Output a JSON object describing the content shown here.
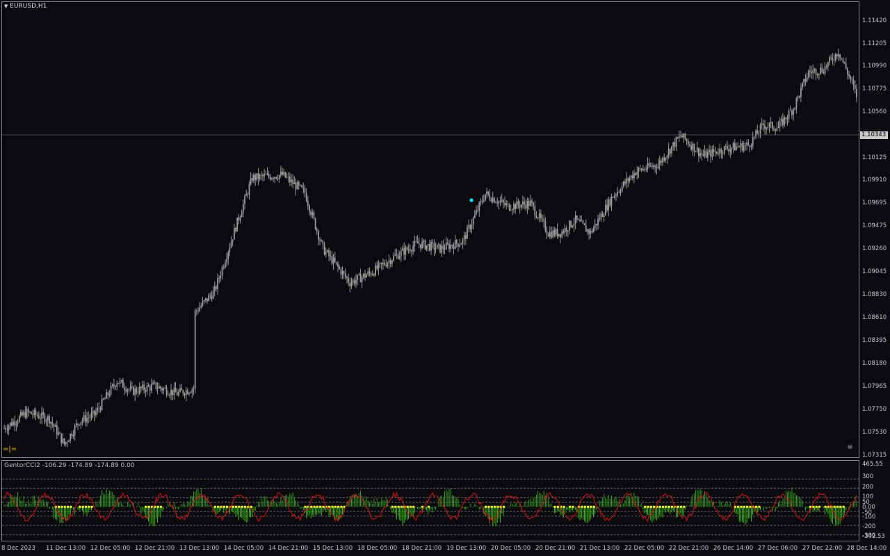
{
  "window": {
    "symbol_title": "EURUSD,H1"
  },
  "current_price": "1.10343",
  "price_axis": [
    "1.11420",
    "1.11205",
    "1.10990",
    "1.10775",
    "1.10560",
    "1.10125",
    "1.09910",
    "1.09695",
    "1.09475",
    "1.09260",
    "1.09045",
    "1.08830",
    "1.08610",
    "1.08395",
    "1.08180",
    "1.07965",
    "1.07750",
    "1.07530",
    "1.07315"
  ],
  "indicator": {
    "title": "GentorCCI2 -106.29 -174.89 -174.89 0.00",
    "axis": [
      "465.55",
      "300",
      "200",
      "100",
      "50",
      "0.00",
      "-50",
      "-100",
      "-200",
      "-300",
      "-342.53"
    ],
    "colors": {
      "positive": "#2e9e16",
      "negative": "#35c400",
      "line": "#e01010",
      "signal": "#ffff00"
    }
  },
  "time_axis": [
    "8 Dec 2023",
    "11 Dec 13:00",
    "12 Dec 05:00",
    "12 Dec 21:00",
    "13 Dec 13:00",
    "14 Dec 05:00",
    "14 Dec 21:00",
    "15 Dec 13:00",
    "18 Dec 05:00",
    "18 Dec 21:00",
    "19 Dec 13:00",
    "20 Dec 05:00",
    "20 Dec 21:00",
    "21 Dec 13:00",
    "22 Dec 05:00",
    "22 Dec 21:00",
    "26 Dec 14:00",
    "27 Dec 06:00",
    "27 Dec 22:00",
    "28 Dec 14:00"
  ],
  "colors": {
    "candle": "#9a9a9a",
    "background": "#0b0b0f",
    "grid": "#8a8a8a",
    "cursor": "#00e5ff",
    "expert_icon": "#ffd400"
  },
  "icons": {
    "expert_icon": "=|=",
    "dropdown": "triangle-down-icon",
    "settings": "cross-icon"
  },
  "chart_data": {
    "type": "candlestick",
    "title": "EURUSD,H1",
    "ylim": [
      1.07315,
      1.1142
    ],
    "anchors_close": [
      [
        0,
        1.0755
      ],
      [
        15,
        1.077
      ],
      [
        30,
        1.0764
      ],
      [
        40,
        1.074
      ],
      [
        50,
        1.0762
      ],
      [
        60,
        1.0768
      ],
      [
        75,
        1.08
      ],
      [
        85,
        1.079
      ],
      [
        100,
        1.0795
      ],
      [
        115,
        1.0788
      ],
      [
        126,
        1.0793
      ],
      [
        127,
        1.0865
      ],
      [
        140,
        1.0885
      ],
      [
        155,
        1.095
      ],
      [
        165,
        1.0992
      ],
      [
        185,
        1.0995
      ],
      [
        200,
        1.0978
      ],
      [
        212,
        1.0925
      ],
      [
        230,
        1.0893
      ],
      [
        245,
        1.0903
      ],
      [
        260,
        1.0918
      ],
      [
        275,
        1.093
      ],
      [
        290,
        1.0925
      ],
      [
        305,
        1.0932
      ],
      [
        320,
        1.0977
      ],
      [
        335,
        1.0965
      ],
      [
        350,
        1.0968
      ],
      [
        362,
        1.094
      ],
      [
        370,
        1.094
      ],
      [
        380,
        1.0952
      ],
      [
        390,
        1.094
      ],
      [
        405,
        1.0975
      ],
      [
        420,
        1.0998
      ],
      [
        435,
        1.1005
      ],
      [
        450,
        1.1032
      ],
      [
        465,
        1.1013
      ],
      [
        480,
        1.102
      ],
      [
        495,
        1.1023
      ],
      [
        505,
        1.1042
      ],
      [
        515,
        1.104
      ],
      [
        525,
        1.1058
      ],
      [
        535,
        1.1092
      ],
      [
        545,
        1.1095
      ],
      [
        555,
        1.1112
      ],
      [
        563,
        1.1085
      ],
      [
        567,
        1.107
      ]
    ]
  }
}
